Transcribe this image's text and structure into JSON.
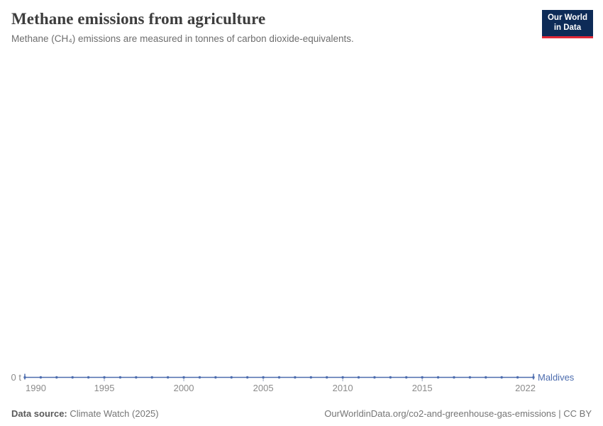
{
  "header": {
    "title": "Methane emissions from agriculture",
    "subtitle": "Methane (CH₄) emissions are measured in tonnes of carbon dioxide-equivalents."
  },
  "logo": {
    "line1": "Our World",
    "line2": "in Data",
    "bg_color": "#0d2b57",
    "accent_color": "#e02837"
  },
  "footer": {
    "source_label": "Data source:",
    "source_value": "Climate Watch (2025)",
    "rights": "OurWorldinData.org/co2-and-greenhouse-gas-emissions | CC BY"
  },
  "chart_data": {
    "type": "line",
    "title": "Methane emissions from agriculture",
    "ylabel": "tonnes of carbon dioxide-equivalents",
    "y_axis_zero_label": "0 t",
    "xlim": [
      1990,
      2022
    ],
    "ylim": [
      0,
      0
    ],
    "grid": false,
    "legend_position": "series-end-label",
    "x_ticks": [
      1990,
      1995,
      2000,
      2005,
      2010,
      2015,
      2022
    ],
    "x": [
      1990,
      1991,
      1992,
      1993,
      1994,
      1995,
      1996,
      1997,
      1998,
      1999,
      2000,
      2001,
      2002,
      2003,
      2004,
      2005,
      2006,
      2007,
      2008,
      2009,
      2010,
      2011,
      2012,
      2013,
      2014,
      2015,
      2016,
      2017,
      2018,
      2019,
      2020,
      2021,
      2022
    ],
    "series": [
      {
        "name": "Maldives",
        "color": "#4c6cae",
        "values": [
          0,
          0,
          0,
          0,
          0,
          0,
          0,
          0,
          0,
          0,
          0,
          0,
          0,
          0,
          0,
          0,
          0,
          0,
          0,
          0,
          0,
          0,
          0,
          0,
          0,
          0,
          0,
          0,
          0,
          0,
          0,
          0,
          0
        ]
      }
    ],
    "colors": {
      "tick_label": "#8b8b8b",
      "axis_tick": "#9aa7bd"
    }
  }
}
